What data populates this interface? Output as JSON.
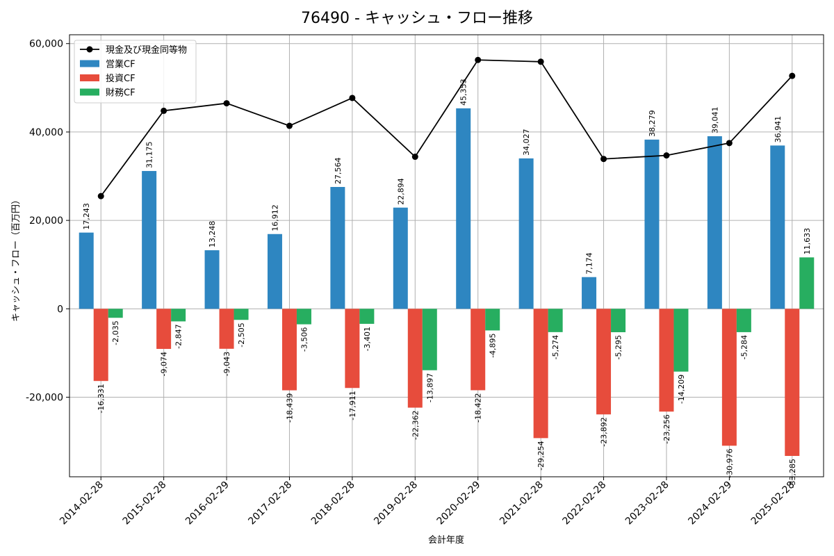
{
  "chart_data": {
    "type": "bar",
    "title": "76490 - キャッシュ・フロー推移",
    "xlabel": "会計年度",
    "ylabel": "キャッシュ・フロー（百万円）",
    "categories": [
      "2014-02-28",
      "2015-02-28",
      "2016-02-29",
      "2017-02-28",
      "2018-02-28",
      "2019-02-28",
      "2020-02-29",
      "2021-02-28",
      "2022-02-28",
      "2023-02-28",
      "2024-02-29",
      "2025-02-28"
    ],
    "ylim": [
      -38000,
      62000
    ],
    "yticks": [
      -20000,
      0,
      20000,
      40000,
      60000
    ],
    "ytick_labels": [
      "-20,000",
      "0",
      "20,000",
      "40,000",
      "60,000"
    ],
    "grid": true,
    "legend_position": "top-left",
    "series": [
      {
        "name": "営業CF",
        "type": "bar",
        "color": "#2e86c1",
        "values": [
          17243,
          31175,
          13248,
          16912,
          27564,
          22894,
          45353,
          34027,
          7174,
          38279,
          39041,
          36941
        ],
        "labels": [
          "17,243",
          "31,175",
          "13,248",
          "16,912",
          "27,564",
          "22,894",
          "45,353",
          "34,027",
          "7,174",
          "38,279",
          "39,041",
          "36,941"
        ]
      },
      {
        "name": "投資CF",
        "type": "bar",
        "color": "#e74c3c",
        "values": [
          -16331,
          -9074,
          -9043,
          -18439,
          -17911,
          -22362,
          -18422,
          -29254,
          -23892,
          -23256,
          -30976,
          -33285
        ],
        "labels": [
          "-16,331",
          "-9,074",
          "-9,043",
          "-18,439",
          "-17,911",
          "-22,362",
          "-18,422",
          "-29,254",
          "-23,892",
          "-23,256",
          "-30,976",
          "-33,285"
        ]
      },
      {
        "name": "財務CF",
        "type": "bar",
        "color": "#27ae60",
        "values": [
          -2035,
          -2847,
          -2505,
          -3506,
          -3401,
          -13897,
          -4895,
          -5274,
          -5295,
          -14209,
          -5284,
          11633
        ],
        "labels": [
          "-2,035",
          "-2,847",
          "-2,505",
          "-3,506",
          "-3,401",
          "-13,897",
          "-4,895",
          "-5,274",
          "-5,295",
          "-14,209",
          "-5,284",
          "11,633"
        ]
      },
      {
        "name": "現金及び現金同等物",
        "type": "line",
        "color": "#000000",
        "values": [
          25500,
          44800,
          46500,
          41400,
          47700,
          34400,
          56300,
          55900,
          33900,
          34700,
          37500,
          52700
        ]
      }
    ]
  }
}
